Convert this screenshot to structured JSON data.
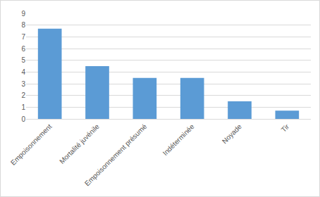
{
  "chart_data": {
    "type": "bar",
    "categories": [
      "Empoisonnement",
      "Mortalité juvénile",
      "Empoisonnement présumé",
      "Indéterminée",
      "Noyade",
      "Tir"
    ],
    "values": [
      7.7,
      4.5,
      3.5,
      3.5,
      1.5,
      0.7
    ],
    "color": "#5b9bd5",
    "ylim": [
      0,
      9
    ],
    "yticks": [
      0,
      1,
      2,
      3,
      4,
      5,
      6,
      7,
      8,
      9
    ],
    "grid": true
  }
}
